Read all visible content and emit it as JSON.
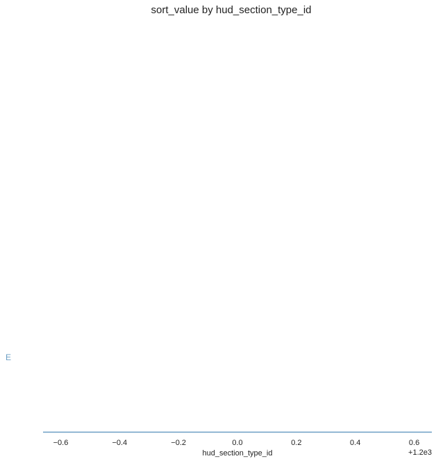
{
  "chart_data": {
    "type": "line",
    "title": "sort_value by hud_section_type_id",
    "xlabel": "hud_section_type_id",
    "ylabel": "",
    "x_offset_label": "+1.2e3",
    "xlim": [
      -0.66,
      0.66
    ],
    "x_ticks": [
      -0.6,
      -0.4,
      -0.2,
      0.0,
      0.2,
      0.4,
      0.6
    ],
    "x_tick_labels": [
      "−0.6",
      "−0.4",
      "−0.2",
      "0.0",
      "0.2",
      "0.4",
      "0.6"
    ],
    "grid": false,
    "series": [
      {
        "name": "E",
        "color": "#6a9ec4",
        "points": []
      }
    ]
  }
}
